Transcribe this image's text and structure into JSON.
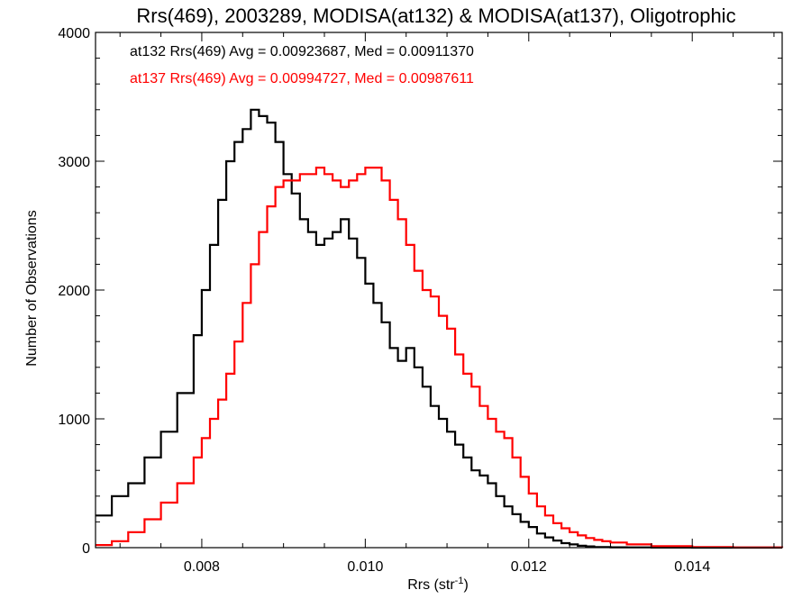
{
  "chart_data": {
    "type": "line",
    "title": "Rrs(469), 2003289, MODISA(at132) & MODISA(at137), Oligotrophic",
    "xlabel": "Rrs (str",
    "xlabel_sup": "-1",
    "xlabel_end": ")",
    "ylabel": "Number of Observations",
    "xlim": [
      0.0067,
      0.0151
    ],
    "ylim": [
      0,
      4000
    ],
    "x_ticks": [
      0.008,
      0.01,
      0.012,
      0.014
    ],
    "x_tick_labels": [
      "0.008",
      "0.010",
      "0.012",
      "0.014"
    ],
    "y_ticks": [
      0,
      1000,
      2000,
      3000,
      4000
    ],
    "y_tick_labels": [
      "0",
      "1000",
      "2000",
      "3000",
      "4000"
    ],
    "grid": false,
    "legend_position": "top-left",
    "series": [
      {
        "legend": "at132 Rrs(469) Avg = 0.00923687, Med = 0.00911370",
        "color": "#000000",
        "x": [
          0.0067,
          0.0069,
          0.0071,
          0.0073,
          0.0075,
          0.0077,
          0.0079,
          0.008,
          0.0081,
          0.0082,
          0.0083,
          0.0084,
          0.0085,
          0.0086,
          0.0087,
          0.0088,
          0.0089,
          0.009,
          0.0091,
          0.0092,
          0.0093,
          0.0094,
          0.0095,
          0.0096,
          0.0097,
          0.0098,
          0.0099,
          0.01,
          0.0101,
          0.0102,
          0.0103,
          0.0104,
          0.0105,
          0.0106,
          0.0107,
          0.0108,
          0.0109,
          0.011,
          0.0111,
          0.0112,
          0.0113,
          0.0114,
          0.0115,
          0.0116,
          0.0117,
          0.0118,
          0.0119,
          0.012,
          0.0121,
          0.0122,
          0.0123,
          0.0124,
          0.0125,
          0.0126,
          0.0127,
          0.0128,
          0.0129,
          0.013,
          0.0132,
          0.0135,
          0.014,
          0.0151
        ],
        "y": [
          250,
          400,
          500,
          700,
          900,
          1200,
          1650,
          2000,
          2350,
          2700,
          3000,
          3150,
          3250,
          3400,
          3350,
          3300,
          3150,
          2900,
          2750,
          2550,
          2450,
          2350,
          2400,
          2450,
          2550,
          2400,
          2250,
          2050,
          1900,
          1750,
          1550,
          1450,
          1550,
          1400,
          1250,
          1100,
          1000,
          900,
          800,
          700,
          600,
          560,
          500,
          400,
          320,
          260,
          200,
          160,
          110,
          80,
          55,
          35,
          25,
          15,
          10,
          5,
          5,
          3,
          2,
          1,
          0,
          0
        ]
      },
      {
        "legend": "at137 Rrs(469) Avg = 0.00994727, Med = 0.00987611",
        "color": "#ff0000",
        "x": [
          0.0067,
          0.0069,
          0.0071,
          0.0073,
          0.0075,
          0.0077,
          0.0079,
          0.008,
          0.0081,
          0.0082,
          0.0083,
          0.0084,
          0.0085,
          0.0086,
          0.0087,
          0.0088,
          0.0089,
          0.009,
          0.0091,
          0.0092,
          0.0093,
          0.0094,
          0.0095,
          0.0096,
          0.0097,
          0.0098,
          0.0099,
          0.01,
          0.0101,
          0.0102,
          0.0103,
          0.0104,
          0.0105,
          0.0106,
          0.0107,
          0.0108,
          0.0109,
          0.011,
          0.0111,
          0.0112,
          0.0113,
          0.0114,
          0.0115,
          0.0116,
          0.0117,
          0.0118,
          0.0119,
          0.012,
          0.0121,
          0.0122,
          0.0123,
          0.0124,
          0.0125,
          0.0126,
          0.0127,
          0.0128,
          0.0129,
          0.013,
          0.0132,
          0.0135,
          0.014,
          0.0145,
          0.0151
        ],
        "y": [
          20,
          50,
          120,
          220,
          350,
          500,
          700,
          850,
          1000,
          1150,
          1350,
          1600,
          1900,
          2200,
          2450,
          2650,
          2800,
          2850,
          2850,
          2900,
          2900,
          2950,
          2900,
          2850,
          2800,
          2850,
          2900,
          2950,
          2950,
          2850,
          2700,
          2550,
          2350,
          2150,
          2000,
          1950,
          1800,
          1700,
          1500,
          1350,
          1250,
          1100,
          1000,
          900,
          850,
          700,
          550,
          420,
          320,
          250,
          190,
          150,
          120,
          95,
          75,
          60,
          50,
          40,
          25,
          12,
          5,
          2,
          0
        ]
      }
    ]
  }
}
